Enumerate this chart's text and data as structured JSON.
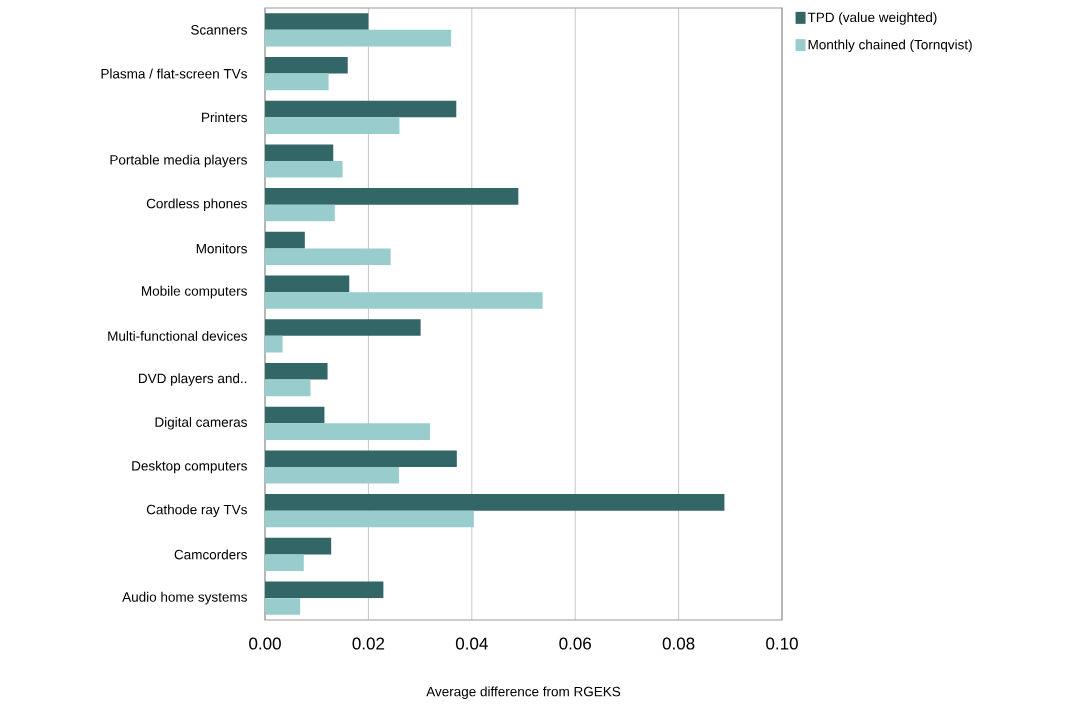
{
  "chart_data": {
    "type": "bar",
    "orientation": "horizontal",
    "xlabel": "Average difference from RGEKS",
    "categories": [
      "Scanners",
      "Plasma / flat-screen TVs",
      "Printers",
      "Portable media players",
      "Cordless phones",
      "Monitors",
      "Mobile computers",
      "Multi-functional devices",
      "DVD players and..",
      "Digital cameras",
      "Desktop computers",
      "Cathode ray TVs",
      "Camcorders",
      "Audio home systems"
    ],
    "series": [
      {
        "name": "TPD (value weighted)",
        "color": "#336666",
        "values": [
          0.02,
          0.016,
          0.037,
          0.0132,
          0.049,
          0.0077,
          0.0163,
          0.0301,
          0.0121,
          0.0115,
          0.0371,
          0.0889,
          0.0128,
          0.0229
        ]
      },
      {
        "name": "Monthly chained (Tornqvist)",
        "color": "#99cccc",
        "values": [
          0.036,
          0.0123,
          0.026,
          0.015,
          0.0135,
          0.0243,
          0.0537,
          0.0034,
          0.0088,
          0.0319,
          0.0259,
          0.0404,
          0.0075,
          0.0068
        ]
      }
    ],
    "xlim": [
      0,
      0.1
    ],
    "xticks": [
      {
        "value": 0,
        "label": "0.00"
      },
      {
        "value": 0.02,
        "label": "0.02"
      },
      {
        "value": 0.04,
        "label": "0.04"
      },
      {
        "value": 0.06,
        "label": "0.06"
      },
      {
        "value": 0.08,
        "label": "0.08"
      },
      {
        "value": 0.1,
        "label": "0.10"
      }
    ],
    "grid": "x",
    "legend": "right"
  }
}
